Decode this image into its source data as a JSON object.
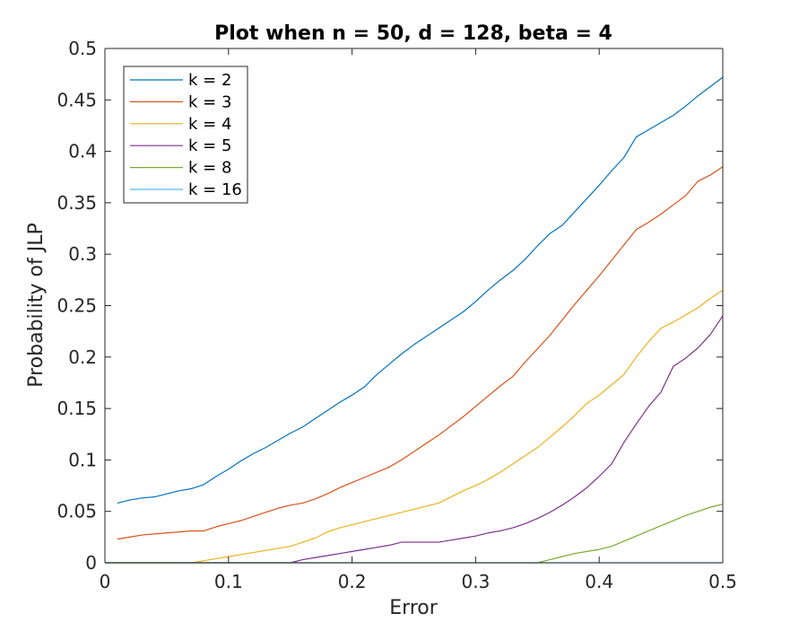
{
  "chart_data": {
    "type": "line",
    "title": "Plot when n = 50, d = 128, beta = 4",
    "xlabel": "Error",
    "ylabel": "Probability of JLP",
    "xlim": [
      0,
      0.5
    ],
    "ylim": [
      0,
      0.5
    ],
    "xticks": [
      "0",
      "0.1",
      "0.2",
      "0.3",
      "0.4",
      "0.5"
    ],
    "yticks": [
      "0",
      "0.05",
      "0.1",
      "0.15",
      "0.2",
      "0.25",
      "0.3",
      "0.35",
      "0.4",
      "0.45",
      "0.5"
    ],
    "grid": false,
    "legend_position": "top-left",
    "series": [
      {
        "name": "k = 2",
        "color": "#0072BD",
        "x": [
          0.01,
          0.02,
          0.03,
          0.04,
          0.05,
          0.06,
          0.07,
          0.08,
          0.09,
          0.1,
          0.11,
          0.12,
          0.13,
          0.14,
          0.15,
          0.16,
          0.17,
          0.18,
          0.19,
          0.2,
          0.21,
          0.22,
          0.23,
          0.24,
          0.25,
          0.26,
          0.27,
          0.28,
          0.29,
          0.3,
          0.31,
          0.32,
          0.33,
          0.34,
          0.35,
          0.36,
          0.37,
          0.38,
          0.39,
          0.4,
          0.41,
          0.42,
          0.43,
          0.44,
          0.45,
          0.46,
          0.47,
          0.48,
          0.49,
          0.5
        ],
        "y": [
          0.058,
          0.061,
          0.063,
          0.064,
          0.067,
          0.07,
          0.072,
          0.076,
          0.084,
          0.091,
          0.099,
          0.106,
          0.112,
          0.119,
          0.126,
          0.132,
          0.14,
          0.148,
          0.156,
          0.163,
          0.171,
          0.183,
          0.193,
          0.203,
          0.212,
          0.22,
          0.228,
          0.236,
          0.244,
          0.254,
          0.265,
          0.275,
          0.284,
          0.295,
          0.308,
          0.32,
          0.328,
          0.341,
          0.354,
          0.367,
          0.381,
          0.394,
          0.414,
          0.421,
          0.428,
          0.435,
          0.444,
          0.454,
          0.463,
          0.472
        ]
      },
      {
        "name": "k = 3",
        "color": "#D95319",
        "x": [
          0.01,
          0.02,
          0.03,
          0.04,
          0.05,
          0.06,
          0.07,
          0.08,
          0.09,
          0.1,
          0.11,
          0.12,
          0.13,
          0.14,
          0.15,
          0.16,
          0.17,
          0.18,
          0.19,
          0.2,
          0.21,
          0.22,
          0.23,
          0.24,
          0.25,
          0.26,
          0.27,
          0.28,
          0.29,
          0.3,
          0.31,
          0.32,
          0.33,
          0.34,
          0.35,
          0.36,
          0.37,
          0.38,
          0.39,
          0.4,
          0.41,
          0.42,
          0.43,
          0.44,
          0.45,
          0.46,
          0.47,
          0.48,
          0.49,
          0.5
        ],
        "y": [
          0.023,
          0.025,
          0.027,
          0.028,
          0.029,
          0.03,
          0.031,
          0.031,
          0.035,
          0.038,
          0.041,
          0.045,
          0.049,
          0.053,
          0.056,
          0.058,
          0.062,
          0.067,
          0.073,
          0.078,
          0.083,
          0.088,
          0.093,
          0.1,
          0.108,
          0.116,
          0.124,
          0.133,
          0.142,
          0.152,
          0.162,
          0.172,
          0.181,
          0.195,
          0.208,
          0.221,
          0.236,
          0.251,
          0.265,
          0.279,
          0.294,
          0.309,
          0.324,
          0.331,
          0.339,
          0.348,
          0.357,
          0.371,
          0.377,
          0.385
        ]
      },
      {
        "name": "k = 4",
        "color": "#EDB120",
        "x": [
          0.0,
          0.07,
          0.08,
          0.09,
          0.1,
          0.11,
          0.12,
          0.13,
          0.14,
          0.15,
          0.16,
          0.17,
          0.18,
          0.19,
          0.2,
          0.21,
          0.22,
          0.23,
          0.24,
          0.25,
          0.26,
          0.27,
          0.28,
          0.29,
          0.3,
          0.31,
          0.32,
          0.33,
          0.34,
          0.35,
          0.36,
          0.37,
          0.38,
          0.39,
          0.4,
          0.41,
          0.42,
          0.43,
          0.44,
          0.45,
          0.46,
          0.47,
          0.48,
          0.49,
          0.5
        ],
        "y": [
          0,
          0,
          0.002,
          0.004,
          0.006,
          0.008,
          0.01,
          0.012,
          0.014,
          0.016,
          0.02,
          0.024,
          0.03,
          0.034,
          0.037,
          0.04,
          0.043,
          0.046,
          0.049,
          0.052,
          0.055,
          0.058,
          0.064,
          0.07,
          0.075,
          0.081,
          0.088,
          0.096,
          0.104,
          0.112,
          0.122,
          0.132,
          0.143,
          0.155,
          0.163,
          0.173,
          0.183,
          0.2,
          0.215,
          0.228,
          0.234,
          0.241,
          0.248,
          0.257,
          0.265
        ]
      },
      {
        "name": "k = 5",
        "color": "#7E2F8E",
        "x": [
          0.0,
          0.15,
          0.16,
          0.17,
          0.18,
          0.19,
          0.2,
          0.21,
          0.22,
          0.23,
          0.24,
          0.25,
          0.26,
          0.27,
          0.28,
          0.29,
          0.3,
          0.31,
          0.32,
          0.33,
          0.34,
          0.35,
          0.36,
          0.37,
          0.38,
          0.39,
          0.4,
          0.41,
          0.42,
          0.43,
          0.44,
          0.45,
          0.46,
          0.47,
          0.48,
          0.49,
          0.5
        ],
        "y": [
          0,
          0,
          0.003,
          0.005,
          0.007,
          0.009,
          0.011,
          0.013,
          0.015,
          0.017,
          0.02,
          0.02,
          0.02,
          0.02,
          0.022,
          0.024,
          0.026,
          0.029,
          0.031,
          0.034,
          0.038,
          0.043,
          0.049,
          0.056,
          0.064,
          0.073,
          0.084,
          0.096,
          0.117,
          0.135,
          0.152,
          0.166,
          0.191,
          0.199,
          0.209,
          0.222,
          0.24
        ]
      },
      {
        "name": "k = 8",
        "color": "#77AC30",
        "x": [
          0.0,
          0.35,
          0.36,
          0.37,
          0.38,
          0.39,
          0.4,
          0.41,
          0.42,
          0.43,
          0.44,
          0.45,
          0.46,
          0.47,
          0.48,
          0.49,
          0.5
        ],
        "y": [
          0,
          0,
          0.003,
          0.006,
          0.009,
          0.011,
          0.013,
          0.016,
          0.021,
          0.026,
          0.031,
          0.036,
          0.041,
          0.046,
          0.05,
          0.054,
          0.057
        ]
      },
      {
        "name": "k = 16",
        "color": "#4DBEEE",
        "x": [
          0.0,
          0.5
        ],
        "y": [
          0,
          0
        ]
      }
    ]
  }
}
